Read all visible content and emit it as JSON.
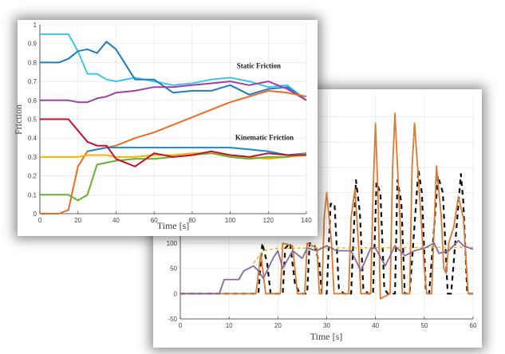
{
  "chart_data": [
    {
      "type": "line",
      "id": "back",
      "title": "",
      "xlabel": "Time [s]",
      "ylabel": "",
      "xlim": [
        0,
        60
      ],
      "ylim": [
        -50,
        400
      ],
      "xticks": [
        0,
        10,
        20,
        30,
        40,
        50,
        60
      ],
      "yticks": [
        -50,
        0,
        50,
        100
      ],
      "grid": true,
      "series": [
        {
          "name": "black-dashed",
          "color": "#111111",
          "dash": true,
          "points": [
            [
              0,
              0
            ],
            [
              16,
              0
            ],
            [
              16.8,
              100
            ],
            [
              17.8,
              60
            ],
            [
              18.5,
              0
            ],
            [
              21,
              0
            ],
            [
              21.5,
              90
            ],
            [
              22.5,
              100
            ],
            [
              23.5,
              20
            ],
            [
              24.5,
              0
            ],
            [
              26,
              0
            ],
            [
              26.5,
              100
            ],
            [
              27.5,
              95
            ],
            [
              28.5,
              60
            ],
            [
              29,
              0
            ],
            [
              30,
              0
            ],
            [
              30.8,
              178
            ],
            [
              31.6,
              178
            ],
            [
              32.5,
              10
            ],
            [
              33.5,
              0
            ],
            [
              35,
              0
            ],
            [
              36,
              225
            ],
            [
              36.8,
              160
            ],
            [
              37.5,
              10
            ],
            [
              38.5,
              0
            ],
            [
              39.5,
              0
            ],
            [
              40.2,
              220
            ],
            [
              41,
              200
            ],
            [
              41.8,
              10
            ],
            [
              42.5,
              0
            ],
            [
              44,
              0
            ],
            [
              44.5,
              225
            ],
            [
              45.3,
              180
            ],
            [
              46,
              0
            ],
            [
              47,
              0
            ],
            [
              48.8,
              245
            ],
            [
              49.5,
              200
            ],
            [
              50.3,
              10
            ],
            [
              51,
              0
            ],
            [
              52.8,
              233
            ],
            [
              53.8,
              200
            ],
            [
              54.8,
              0
            ],
            [
              55.5,
              0
            ],
            [
              57.5,
              237
            ],
            [
              58,
              180
            ],
            [
              58.8,
              0
            ],
            [
              60,
              0
            ]
          ]
        },
        {
          "name": "orange-solid",
          "color": "#D97B35",
          "dash": false,
          "points": [
            [
              0,
              0
            ],
            [
              15.5,
              0
            ],
            [
              16.5,
              80
            ],
            [
              17.5,
              0
            ],
            [
              20.5,
              0
            ],
            [
              21,
              100
            ],
            [
              23,
              95
            ],
            [
              24,
              0
            ],
            [
              25.5,
              0
            ],
            [
              26,
              100
            ],
            [
              28,
              90
            ],
            [
              28.5,
              0
            ],
            [
              29,
              0
            ],
            [
              29.5,
              150
            ],
            [
              30,
              200
            ],
            [
              31,
              100
            ],
            [
              31.5,
              0
            ],
            [
              34.5,
              0
            ],
            [
              35,
              150
            ],
            [
              35.8,
              208
            ],
            [
              36.5,
              100
            ],
            [
              37,
              0
            ],
            [
              39,
              0
            ],
            [
              39.5,
              200
            ],
            [
              40,
              337
            ],
            [
              40.5,
              200
            ],
            [
              41,
              -10
            ],
            [
              43,
              0
            ],
            [
              43.5,
              250
            ],
            [
              44,
              357
            ],
            [
              45,
              150
            ],
            [
              45.5,
              0
            ],
            [
              47,
              0
            ],
            [
              47.5,
              250
            ],
            [
              48,
              338
            ],
            [
              49,
              200
            ],
            [
              50,
              50
            ],
            [
              50.5,
              0
            ],
            [
              51.5,
              0
            ],
            [
              52.5,
              253
            ],
            [
              53.5,
              150
            ],
            [
              54,
              50
            ],
            [
              54.5,
              40
            ],
            [
              55,
              100
            ],
            [
              56,
              130
            ],
            [
              57,
              192
            ],
            [
              58,
              150
            ],
            [
              59,
              0
            ],
            [
              60,
              0
            ]
          ]
        },
        {
          "name": "yellow-dashed",
          "color": "#E8B830",
          "dash": true,
          "points": [
            [
              15,
              60
            ],
            [
              17,
              85
            ],
            [
              20,
              90
            ],
            [
              60,
              92
            ]
          ]
        },
        {
          "name": "purple-solid",
          "color": "#8A6A9A",
          "dash": false,
          "points": [
            [
              0,
              0
            ],
            [
              8,
              0
            ],
            [
              9,
              28
            ],
            [
              12,
              28
            ],
            [
              13,
              45
            ],
            [
              15,
              55
            ],
            [
              16,
              45
            ],
            [
              17,
              30
            ],
            [
              19,
              70
            ],
            [
              20,
              85
            ],
            [
              21,
              50
            ],
            [
              23,
              85
            ],
            [
              25,
              70
            ],
            [
              26,
              90
            ],
            [
              28,
              85
            ],
            [
              30,
              95
            ],
            [
              32,
              85
            ],
            [
              35,
              85
            ],
            [
              37,
              45
            ],
            [
              39,
              90
            ],
            [
              40,
              90
            ],
            [
              42,
              55
            ],
            [
              44,
              95
            ],
            [
              46,
              75
            ],
            [
              48,
              85
            ],
            [
              50,
              90
            ],
            [
              52,
              100
            ],
            [
              53,
              80
            ],
            [
              55,
              85
            ],
            [
              57,
              105
            ],
            [
              58,
              95
            ],
            [
              60,
              88
            ]
          ]
        }
      ]
    },
    {
      "type": "line",
      "id": "front",
      "title": "",
      "xlabel": "Time [s]",
      "ylabel": "Friction",
      "xlim": [
        0,
        140
      ],
      "ylim": [
        0,
        1
      ],
      "xticks": [
        0,
        20,
        40,
        60,
        80,
        100,
        120,
        140
      ],
      "yticks": [
        0,
        0.1,
        0.2,
        0.3,
        0.4,
        0.5,
        0.6,
        0.7,
        0.8,
        0.9,
        1
      ],
      "grid": true,
      "annotations": [
        {
          "text": "Static Friction",
          "x": 115,
          "y": 0.77
        },
        {
          "text": "Kinematic Friction",
          "x": 118,
          "y": 0.39
        }
      ],
      "x": [
        0,
        10,
        15,
        20,
        25,
        30,
        35,
        40,
        50,
        60,
        70,
        80,
        90,
        100,
        110,
        120,
        130,
        140
      ],
      "series": [
        {
          "name": "cyan",
          "color": "#3EC6E8",
          "values": [
            0.95,
            0.95,
            0.95,
            0.86,
            0.74,
            0.74,
            0.71,
            0.7,
            0.72,
            0.7,
            0.68,
            0.69,
            0.71,
            0.72,
            0.7,
            0.67,
            0.68,
            0.6
          ]
        },
        {
          "name": "dark-blue",
          "color": "#1F7CC0",
          "values": [
            0.8,
            0.8,
            0.82,
            0.86,
            0.87,
            0.85,
            0.91,
            0.87,
            0.71,
            0.71,
            0.64,
            0.65,
            0.65,
            0.68,
            0.63,
            0.66,
            0.67,
            0.6
          ]
        },
        {
          "name": "purple",
          "color": "#A040A8",
          "values": [
            0.6,
            0.6,
            0.6,
            0.59,
            0.59,
            0.61,
            0.62,
            0.64,
            0.65,
            0.67,
            0.67,
            0.68,
            0.69,
            0.7,
            0.68,
            0.7,
            0.66,
            0.6
          ]
        },
        {
          "name": "orange",
          "color": "#F06A20",
          "values": [
            0,
            0,
            0.02,
            0.25,
            0.33,
            0.34,
            0.35,
            0.36,
            0.4,
            0.43,
            0.47,
            0.51,
            0.55,
            0.59,
            0.62,
            0.65,
            0.64,
            0.62
          ]
        },
        {
          "name": "blue-kinematic",
          "color": "#1A8AD0",
          "values": [
            null,
            null,
            null,
            null,
            0.33,
            0.34,
            0.35,
            0.35,
            0.35,
            0.35,
            0.35,
            0.35,
            0.35,
            0.35,
            0.34,
            0.33,
            0.31,
            0.32
          ]
        },
        {
          "name": "yellow",
          "color": "#F4B400",
          "values": [
            0.3,
            0.3,
            0.3,
            0.3,
            0.31,
            0.31,
            0.31,
            0.3,
            0.3,
            0.31,
            0.31,
            0.32,
            0.32,
            0.31,
            0.3,
            0.29,
            0.3,
            0.31
          ]
        },
        {
          "name": "green",
          "color": "#6AB030",
          "values": [
            0.1,
            0.1,
            0.1,
            0.07,
            0.1,
            0.26,
            0.27,
            0.28,
            0.29,
            0.29,
            0.3,
            0.31,
            0.32,
            0.3,
            0.29,
            0.3,
            0.3,
            0.32
          ]
        },
        {
          "name": "red",
          "color": "#C8102E",
          "values": [
            0.5,
            0.5,
            0.5,
            0.44,
            0.38,
            0.36,
            0.36,
            0.29,
            0.25,
            0.32,
            0.3,
            0.31,
            0.33,
            0.31,
            0.3,
            0.32,
            0.31,
            0.31
          ]
        }
      ]
    }
  ]
}
